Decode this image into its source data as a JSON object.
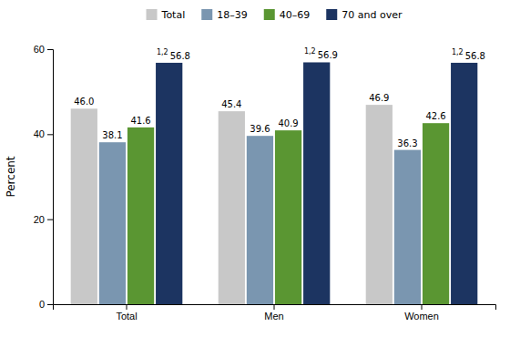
{
  "chart_data": {
    "type": "bar",
    "categories": [
      "Total",
      "Men",
      "Women"
    ],
    "series": [
      {
        "name": "Total",
        "color": "#c8c8c8",
        "values": [
          46.0,
          45.4,
          46.9
        ],
        "value_labels": [
          "46.0",
          "45.4",
          "46.9"
        ]
      },
      {
        "name": "18–39",
        "color": "#7a96b0",
        "values": [
          38.1,
          39.6,
          36.3
        ]
      },
      {
        "name": "40–69",
        "color": "#5a9632",
        "values": [
          41.6,
          40.9,
          42.6
        ]
      },
      {
        "name": "70 and over",
        "color": "#1c3461",
        "values": [
          56.8,
          56.9,
          56.8
        ],
        "annotations": [
          "1,2",
          "1,2",
          "1,2"
        ]
      }
    ],
    "ylabel": "Percent",
    "ylim": [
      0,
      60
    ],
    "yticks": [
      0,
      20,
      40,
      60
    ],
    "grid": false,
    "legend": "top",
    "data_labels": true
  }
}
